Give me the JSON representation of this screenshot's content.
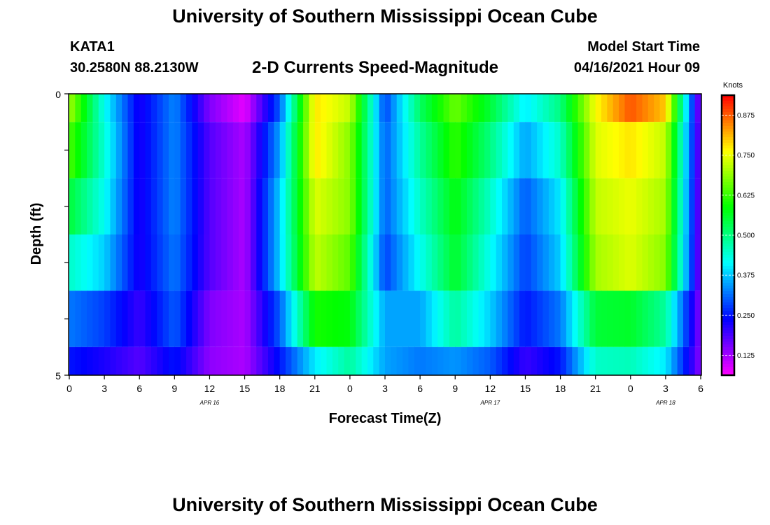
{
  "header": {
    "title": "University of Southern Mississippi Ocean Cube",
    "station": "KATA1",
    "coordinates": "30.2580N  88.2130W",
    "plot_title": "2-D Currents Speed-Magnitude",
    "model_start_label": "Model Start Time",
    "model_start_value": "04/16/2021 Hour 09"
  },
  "footer": {
    "title": "University of Southern Mississippi Ocean Cube"
  },
  "chart_data": {
    "type": "heatmap",
    "title": "2-D Currents Speed-Magnitude",
    "xlabel": "Forecast Time(Z)",
    "ylabel": "Depth (ft)",
    "y_tick_labels": [
      "0",
      "5"
    ],
    "ylim": [
      0,
      5
    ],
    "x_hours_range": [
      0,
      54
    ],
    "x_tick_labels": [
      "0",
      "3",
      "6",
      "9",
      "12",
      "15",
      "18",
      "21",
      "0",
      "3",
      "6",
      "9",
      "12",
      "15",
      "18",
      "21",
      "0",
      "3",
      "6"
    ],
    "date_labels": [
      {
        "text": "APR  16",
        "hour": 12
      },
      {
        "text": "APR  17",
        "hour": 36
      },
      {
        "text": "APR  18",
        "hour": 51
      }
    ],
    "depth_layers": [
      "0-0.5",
      "0.5-1.5",
      "1.5-2.5",
      "2.5-3.5",
      "3.5-4.5",
      "4.5-5"
    ],
    "depth_bounds": [
      0,
      0.5,
      1.5,
      2.5,
      3.5,
      4.5,
      5
    ],
    "hours": [
      0,
      3,
      6,
      9,
      12,
      15,
      18,
      21,
      24,
      27,
      30,
      33,
      36,
      39,
      42,
      45,
      48,
      51,
      54
    ],
    "values_knots": [
      [
        0.7,
        0.42,
        0.22,
        0.33,
        0.15,
        0.08,
        0.3,
        0.78,
        0.72,
        0.28,
        0.52,
        0.66,
        0.55,
        0.4,
        0.5,
        0.76,
        0.88,
        0.8,
        0.12
      ],
      [
        0.64,
        0.44,
        0.22,
        0.33,
        0.18,
        0.12,
        0.35,
        0.78,
        0.68,
        0.3,
        0.48,
        0.62,
        0.5,
        0.35,
        0.45,
        0.74,
        0.78,
        0.72,
        0.14
      ],
      [
        0.55,
        0.42,
        0.22,
        0.33,
        0.18,
        0.12,
        0.38,
        0.74,
        0.68,
        0.3,
        0.45,
        0.58,
        0.45,
        0.3,
        0.4,
        0.72,
        0.75,
        0.7,
        0.14
      ],
      [
        0.45,
        0.38,
        0.22,
        0.32,
        0.18,
        0.12,
        0.38,
        0.72,
        0.65,
        0.28,
        0.42,
        0.56,
        0.42,
        0.28,
        0.38,
        0.7,
        0.74,
        0.68,
        0.14
      ],
      [
        0.32,
        0.28,
        0.2,
        0.3,
        0.15,
        0.12,
        0.3,
        0.6,
        0.58,
        0.35,
        0.35,
        0.48,
        0.38,
        0.25,
        0.32,
        0.55,
        0.56,
        0.48,
        0.14
      ],
      [
        0.25,
        0.22,
        0.18,
        0.25,
        0.14,
        0.12,
        0.25,
        0.4,
        0.48,
        0.35,
        0.32,
        0.34,
        0.3,
        0.2,
        0.25,
        0.45,
        0.46,
        0.4,
        0.14
      ]
    ],
    "colorbar": {
      "title": "Knots",
      "tick_labels": [
        "0.875",
        "0.750",
        "0.625",
        "0.500",
        "0.375",
        "0.250",
        "0.125"
      ],
      "min": 0.0625,
      "max": 0.9375
    }
  }
}
